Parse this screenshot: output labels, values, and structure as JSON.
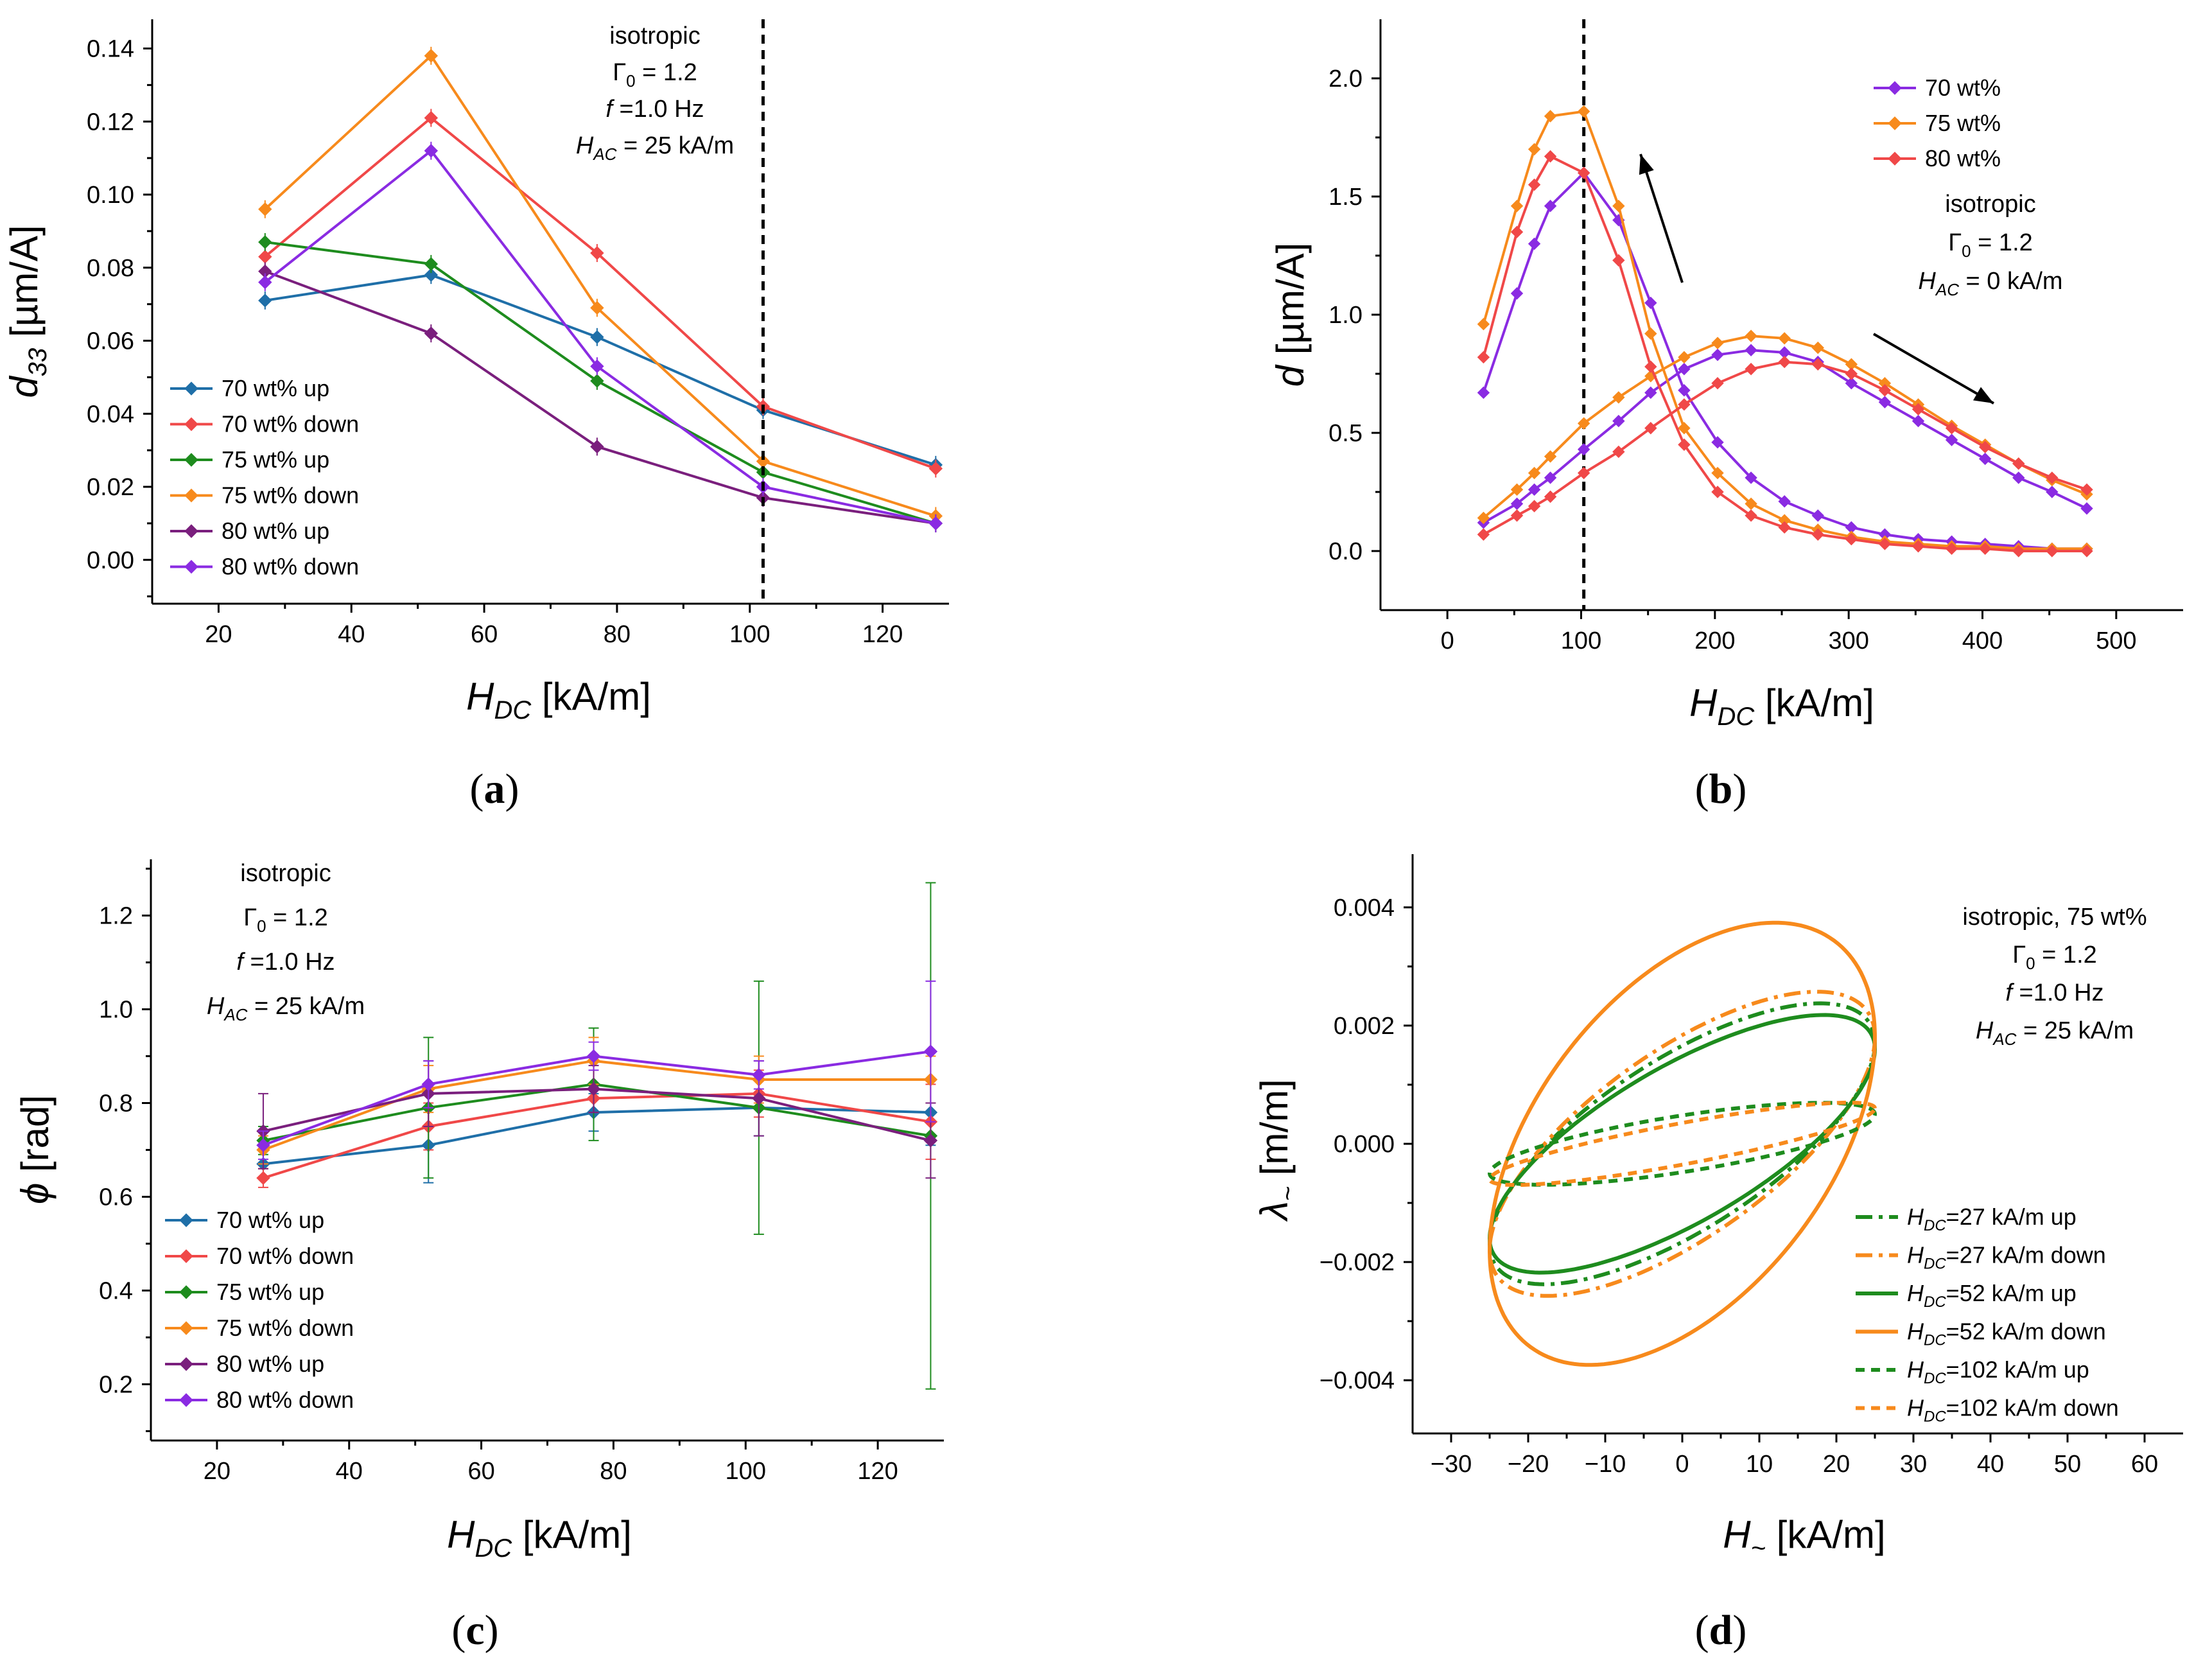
{
  "colors": {
    "blue": "#1f6fa8",
    "red": "#f04848",
    "green": "#1e8c1e",
    "orange": "#f78a1c",
    "darkpurple": "#7a1f7d",
    "violet": "#8a2be2"
  },
  "chart_data": [
    {
      "panel": "(a)",
      "type": "line",
      "ylabel_main": "d",
      "ylabel_sub": "33",
      "ylabel_unit": " [µm/A]",
      "xlabel_main": "H",
      "xlabel_sub": "DC",
      "xlabel_unit": " [kA/m]",
      "xlim": [
        10,
        130
      ],
      "ylim": [
        -0.012,
        0.148
      ],
      "xticks": [
        20,
        40,
        60,
        80,
        100,
        120
      ],
      "yticks": [
        0.0,
        0.02,
        0.04,
        0.06,
        0.08,
        0.1,
        0.12,
        0.14
      ],
      "ytick_labels": [
        "0.00",
        "0.02",
        "0.04",
        "0.06",
        "0.08",
        "0.10",
        "0.12",
        "0.14"
      ],
      "vline_x": 102,
      "annotation": [
        "isotropic",
        "Γ₀ = 1.2",
        "f =1.0 Hz",
        "H_AC = 25 kA/m"
      ],
      "legend_position": "lower-left",
      "x": [
        27,
        52,
        77,
        102,
        128
      ],
      "series": [
        {
          "name": "70 wt% up",
          "color": "blue",
          "values": [
            0.071,
            0.078,
            0.061,
            0.041,
            0.026
          ]
        },
        {
          "name": "70 wt% down",
          "color": "red",
          "values": [
            0.083,
            0.121,
            0.084,
            0.042,
            0.025
          ]
        },
        {
          "name": "75 wt% up",
          "color": "green",
          "values": [
            0.087,
            0.081,
            0.049,
            0.024,
            0.01
          ]
        },
        {
          "name": "75 wt% down",
          "color": "orange",
          "values": [
            0.096,
            0.138,
            0.069,
            0.027,
            0.012
          ]
        },
        {
          "name": "80 wt% up",
          "color": "darkpurple",
          "values": [
            0.079,
            0.062,
            0.031,
            0.017,
            0.01
          ]
        },
        {
          "name": "80 wt% down",
          "color": "violet",
          "values": [
            0.076,
            0.112,
            0.053,
            0.02,
            0.01
          ]
        }
      ]
    },
    {
      "panel": "(b)",
      "type": "line",
      "ylabel_main": "d",
      "ylabel_unit": " [µm/A]",
      "xlabel_main": "H",
      "xlabel_sub": "DC",
      "xlabel_unit": " [kA/m]",
      "xlim": [
        -50,
        550
      ],
      "ylim": [
        -0.25,
        2.25
      ],
      "xticks": [
        0,
        100,
        200,
        300,
        400,
        500
      ],
      "yticks": [
        0.0,
        0.5,
        1.0,
        1.5,
        2.0
      ],
      "ytick_labels": [
        "0.0",
        "0.5",
        "1.0",
        "1.5",
        "2.0"
      ],
      "vline_x": 102,
      "annotation": [
        "isotropic",
        "Γ₀ = 1.2",
        "H_AC = 0 kA/m"
      ],
      "legend_position": "top-right",
      "x": [
        27,
        52,
        65,
        77,
        102,
        128,
        152,
        177,
        202,
        227,
        252,
        277,
        302,
        327,
        352,
        377,
        402,
        427,
        452,
        478
      ],
      "series": [
        {
          "name": "70 wt%",
          "color": "violet",
          "branch": "up",
          "values": [
            0.12,
            0.2,
            0.26,
            0.31,
            0.43,
            0.55,
            0.67,
            0.77,
            0.83,
            0.85,
            0.84,
            0.8,
            0.71,
            0.63,
            0.55,
            0.47,
            0.39,
            0.31,
            0.25,
            0.18
          ]
        },
        {
          "name": "70 wt%",
          "color": "violet",
          "branch": "down",
          "values": [
            0.67,
            1.09,
            1.3,
            1.46,
            1.6,
            1.4,
            1.05,
            0.68,
            0.46,
            0.31,
            0.21,
            0.15,
            0.1,
            0.07,
            0.05,
            0.04,
            0.03,
            0.02,
            0.01,
            0.01
          ]
        },
        {
          "name": "75 wt%",
          "color": "orange",
          "branch": "up",
          "values": [
            0.14,
            0.26,
            0.33,
            0.4,
            0.54,
            0.65,
            0.74,
            0.82,
            0.88,
            0.91,
            0.9,
            0.86,
            0.79,
            0.71,
            0.62,
            0.53,
            0.45,
            0.37,
            0.3,
            0.24
          ]
        },
        {
          "name": "75 wt%",
          "color": "orange",
          "branch": "down",
          "values": [
            0.96,
            1.46,
            1.7,
            1.84,
            1.86,
            1.46,
            0.92,
            0.52,
            0.33,
            0.2,
            0.13,
            0.09,
            0.06,
            0.04,
            0.03,
            0.02,
            0.02,
            0.01,
            0.01,
            0.01
          ]
        },
        {
          "name": "80 wt%",
          "color": "red",
          "branch": "up",
          "values": [
            0.07,
            0.15,
            0.19,
            0.23,
            0.33,
            0.42,
            0.52,
            0.62,
            0.71,
            0.77,
            0.8,
            0.79,
            0.75,
            0.68,
            0.6,
            0.52,
            0.44,
            0.37,
            0.31,
            0.26
          ]
        },
        {
          "name": "80 wt%",
          "color": "red",
          "branch": "down",
          "values": [
            0.82,
            1.35,
            1.55,
            1.67,
            1.6,
            1.23,
            0.78,
            0.45,
            0.25,
            0.15,
            0.1,
            0.07,
            0.05,
            0.03,
            0.02,
            0.01,
            0.01,
            0.0,
            0.0,
            0.0
          ]
        }
      ]
    },
    {
      "panel": "(c)",
      "type": "line",
      "ylabel_main": "ϕ",
      "ylabel_unit": " [rad]",
      "xlabel_main": "H",
      "xlabel_sub": "DC",
      "xlabel_unit": " [kA/m]",
      "xlim": [
        10,
        130
      ],
      "ylim": [
        0.08,
        1.32
      ],
      "xticks": [
        20,
        40,
        60,
        80,
        100,
        120
      ],
      "yticks": [
        0.2,
        0.4,
        0.6,
        0.8,
        1.0,
        1.2
      ],
      "ytick_labels": [
        "0.2",
        "0.4",
        "0.6",
        "0.8",
        "1.0",
        "1.2"
      ],
      "annotation": [
        "isotropic",
        "Γ₀ = 1.2",
        "f =1.0 Hz",
        "H_AC = 25 kA/m"
      ],
      "legend_position": "lower-left",
      "x": [
        27,
        52,
        77,
        102,
        128
      ],
      "series": [
        {
          "name": "70 wt% up",
          "color": "blue",
          "values": [
            0.67,
            0.71,
            0.78,
            0.79,
            0.78
          ],
          "errors": [
            0.03,
            0.08,
            0.04,
            0.06,
            0.07
          ]
        },
        {
          "name": "70 wt% down",
          "color": "red",
          "values": [
            0.64,
            0.75,
            0.81,
            0.82,
            0.76
          ],
          "errors": [
            0.02,
            0.05,
            0.03,
            0.05,
            0.08
          ]
        },
        {
          "name": "75 wt% up",
          "color": "green",
          "values": [
            0.72,
            0.79,
            0.84,
            0.79,
            0.73
          ],
          "errors": [
            0.03,
            0.15,
            0.12,
            0.27,
            0.54
          ]
        },
        {
          "name": "75 wt% down",
          "color": "orange",
          "values": [
            0.7,
            0.83,
            0.89,
            0.85,
            0.85
          ],
          "errors": [
            0.03,
            0.05,
            0.05,
            0.05,
            0.05
          ]
        },
        {
          "name": "80 wt% up",
          "color": "darkpurple",
          "values": [
            0.74,
            0.82,
            0.83,
            0.81,
            0.72
          ],
          "errors": [
            0.08,
            0.07,
            0.05,
            0.08,
            0.08
          ]
        },
        {
          "name": "80 wt% down",
          "color": "violet",
          "values": [
            0.71,
            0.84,
            0.9,
            0.86,
            0.91
          ],
          "errors": [
            0.03,
            0.05,
            0.03,
            0.03,
            0.15
          ]
        }
      ]
    },
    {
      "panel": "(d)",
      "type": "line",
      "ylabel_main": "λ",
      "ylabel_sub": "~",
      "ylabel_unit": " [m/m]",
      "xlabel_main": "H",
      "xlabel_sub": "~",
      "xlabel_unit": " [kA/m]",
      "xlim": [
        -35,
        65
      ],
      "ylim": [
        -0.0049,
        0.0049
      ],
      "xticks": [
        -30,
        -20,
        -10,
        0,
        10,
        20,
        30,
        40,
        50,
        60
      ],
      "xtick_labels": [
        "−30",
        "−20",
        "−10",
        "0",
        "10",
        "20",
        "30",
        "40",
        "50",
        "60"
      ],
      "yticks": [
        -0.004,
        -0.002,
        0.0,
        0.002,
        0.004
      ],
      "ytick_labels": [
        "−0.004",
        "−0.002",
        "0.000",
        "0.002",
        "0.004"
      ],
      "annotation": [
        "isotropic, 75 wt%",
        "Γ₀ = 1.2",
        "f =1.0 Hz",
        "H_AC = 25 kA/m"
      ],
      "legend_position": "bottom-right",
      "loops": [
        {
          "name": "=27 kA/m up",
          "color": "green",
          "style": "dashdot",
          "amplitude": 25,
          "lambda_center": 0.0,
          "lambda_at_hmax": 0.0017,
          "lambda_max": 0.0024,
          "lambda_at_zero_up": -0.0015,
          "lambda_at_zero_down": 0.0014
        },
        {
          "name": "=27 kA/m down",
          "color": "orange",
          "style": "dashdot",
          "amplitude": 25,
          "lambda_center": 0.0,
          "lambda_at_hmax": 0.0018,
          "lambda_max": 0.0026,
          "lambda_at_zero_up": -0.0016,
          "lambda_at_zero_down": 0.0016
        },
        {
          "name": "=52 kA/m up",
          "color": "green",
          "style": "solid",
          "amplitude": 25,
          "lambda_center": 0.0,
          "lambda_at_hmax": 0.0016,
          "lambda_max": 0.0022,
          "lambda_at_zero_up": -0.0012,
          "lambda_at_zero_down": 0.0011
        },
        {
          "name": "=52 kA/m down",
          "color": "orange",
          "style": "solid",
          "amplitude": 25,
          "lambda_center": 0.0,
          "lambda_at_hmax": 0.0018,
          "lambda_max": 0.0038,
          "lambda_at_zero_up": -0.0033,
          "lambda_at_zero_down": 0.0033
        },
        {
          "name": "=102 kA/m up",
          "color": "green",
          "style": "dotted",
          "amplitude": 25,
          "lambda_center": 0.0,
          "lambda_at_hmax": 0.0005,
          "lambda_max": 0.0007,
          "lambda_at_zero_up": -0.0004,
          "lambda_at_zero_down": 0.0004
        },
        {
          "name": "=102 kA/m down",
          "color": "orange",
          "style": "dotted",
          "amplitude": 25,
          "lambda_center": 0.0,
          "lambda_at_hmax": 0.0006,
          "lambda_max": 0.0007,
          "lambda_at_zero_up": -0.0004,
          "lambda_at_zero_down": 0.0004
        }
      ],
      "legend_prefix_main": "H",
      "legend_prefix_sub": "DC"
    }
  ]
}
